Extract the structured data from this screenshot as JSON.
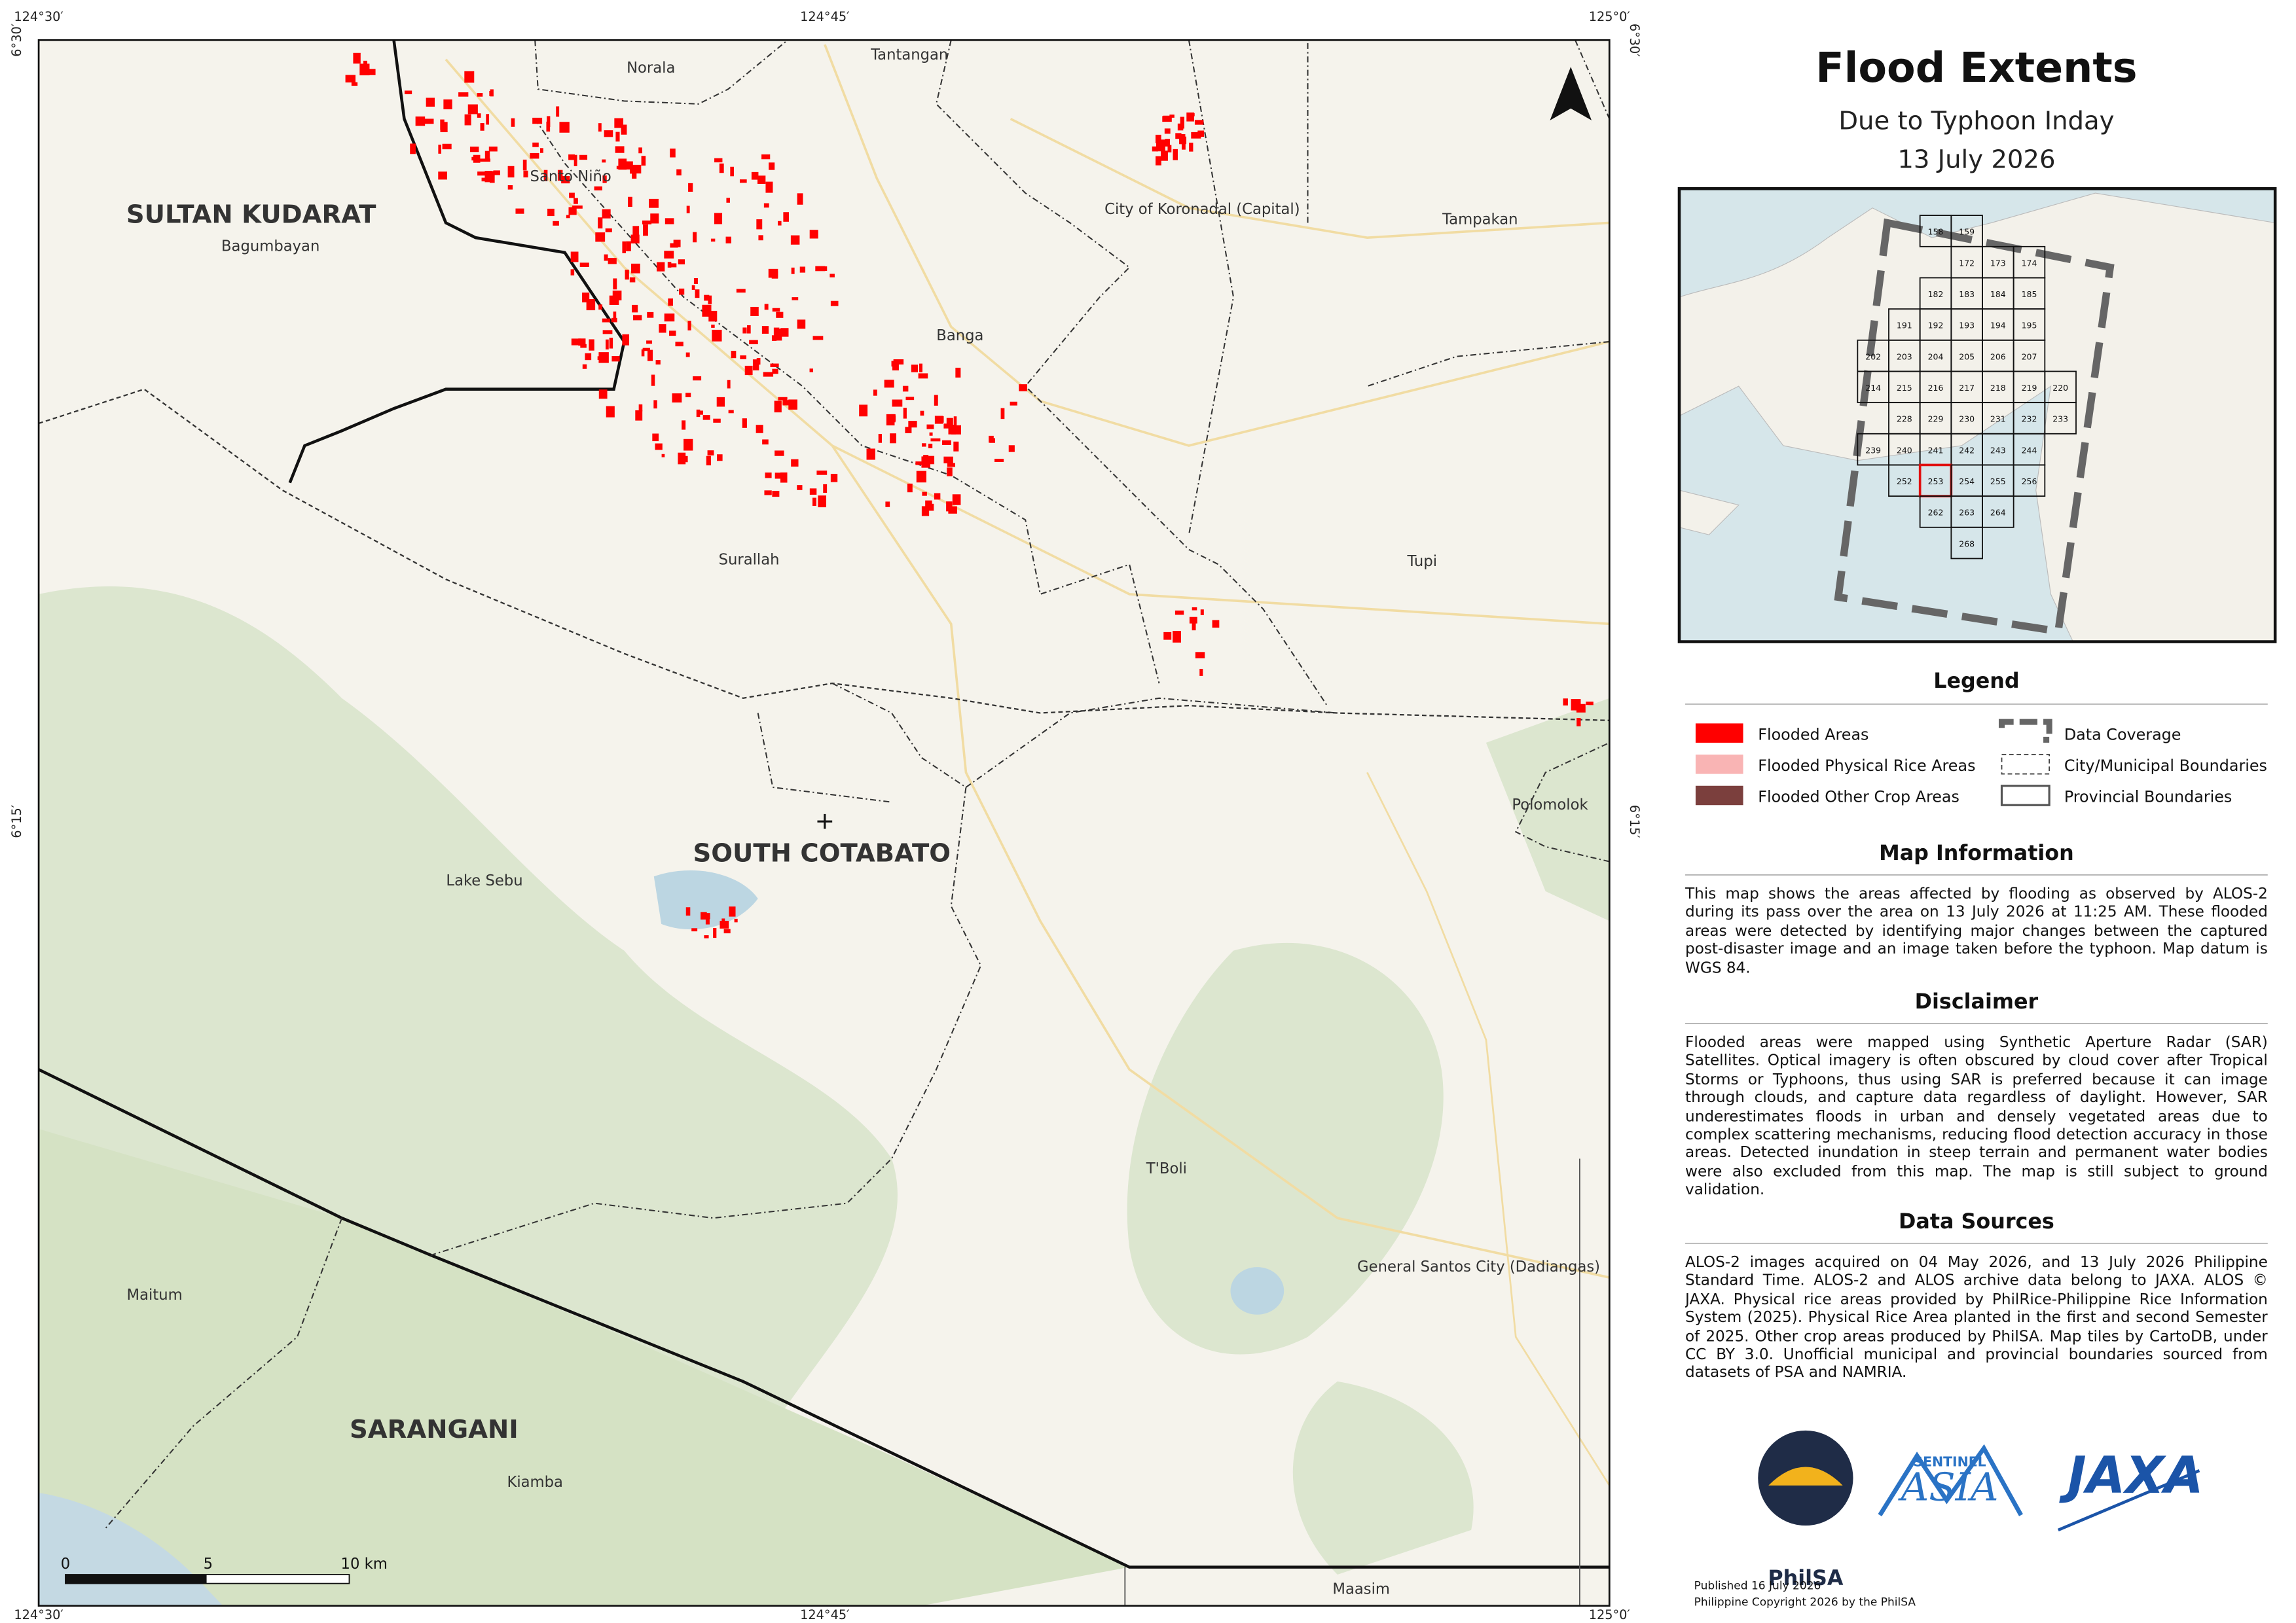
{
  "header": {
    "title": "Flood Extents",
    "subtitle": "Due to Typhoon Inday",
    "date": "13 July 2026"
  },
  "map": {
    "longitudes": [
      "124°30′",
      "124°45′",
      "125°0′"
    ],
    "latitudes": [
      "6°30′",
      "6°15′"
    ],
    "places": [
      "Norala",
      "Tantangan",
      "Santo Niño",
      "City of Koronadal (Capital)",
      "Tampakan",
      "Bagumbayan",
      "Banga",
      "Surallah",
      "Tupi",
      "Polomolok",
      "Lake Sebu",
      "T'Boli",
      "General Santos City (Dadiangas)",
      "Maitum",
      "Kiamba",
      "Maasim"
    ],
    "provinces": [
      "SULTAN KUDARAT",
      "SOUTH COTABATO",
      "SARANGANI"
    ],
    "scale_bar": [
      "0",
      "5",
      "10 km"
    ]
  },
  "index_map": {
    "tiles": [
      [
        "158",
        "159"
      ],
      [
        "172",
        "173",
        "174"
      ],
      [
        "182",
        "183",
        "184",
        "185"
      ],
      [
        "191",
        "192",
        "193",
        "194",
        "195"
      ],
      [
        "202",
        "203",
        "204",
        "205",
        "206",
        "207"
      ],
      [
        "214",
        "215",
        "216",
        "217",
        "218",
        "219",
        "220"
      ],
      [
        "228",
        "229",
        "230",
        "231",
        "232",
        "233"
      ],
      [
        "239",
        "240",
        "241",
        "242",
        "243",
        "244"
      ],
      [
        "252",
        "253",
        "254",
        "255",
        "256"
      ],
      [
        "262",
        "263",
        "264"
      ],
      [
        "268"
      ]
    ]
  },
  "legend": {
    "title": "Legend",
    "items": [
      {
        "label": "Flooded Areas",
        "color": "#ff0000"
      },
      {
        "label": "Flooded Physical Rice Areas",
        "color": "#f9b4b4"
      },
      {
        "label": "Flooded Other Crop Areas",
        "color": "#7b3f3d"
      },
      {
        "label": "Data Coverage"
      },
      {
        "label": "City/Municipal Boundaries"
      },
      {
        "label": "Provincial Boundaries"
      }
    ]
  },
  "sections": [
    {
      "title": "Map Information",
      "text": "This map shows the areas affected by flooding as observed by ALOS-2 during its pass over the area on 13 July 2026 at 11:25 AM. These flooded areas were detected by identifying major changes between the captured post-disaster image and an image taken before the typhoon. Map datum is WGS 84."
    },
    {
      "title": "Disclaimer",
      "text": "Flooded areas were mapped using Synthetic Aperture Radar (SAR) Satellites. Optical imagery is often obscured by cloud cover after Tropical Storms or Typhoons, thus using SAR is preferred because it can image through clouds, and capture data regardless of daylight. However, SAR underestimates floods in urban and densely vegetated areas due to complex scattering mechanisms, reducing flood detection accuracy in those areas. Detected inundation in steep terrain and permanent water bodies were also excluded from this map. The map is still subject to ground validation."
    },
    {
      "title": "Data Sources",
      "text": "ALOS-2 images acquired on 04 May 2026, and 13 July 2026 Philippine Standard Time. ALOS-2 and ALOS archive data belong to JAXA. ALOS © JAXA. Physical rice areas provided by PhilRice-Philippine Rice Information System (2025). Physical Rice Area planted in the first and second Semester of 2025. Other crop areas produced by PhilSA. Map tiles by CartoDB, under CC BY 3.0. Unofficial municipal and provincial boundaries sourced from datasets of PSA and NAMRIA."
    }
  ],
  "logos": [
    "PhilSA",
    "SENTINEL",
    "ASIA",
    "JAXA"
  ],
  "footer": [
    "Published 16 July 2026",
    "Philippine Copyright 2026 by the PhilSA"
  ]
}
